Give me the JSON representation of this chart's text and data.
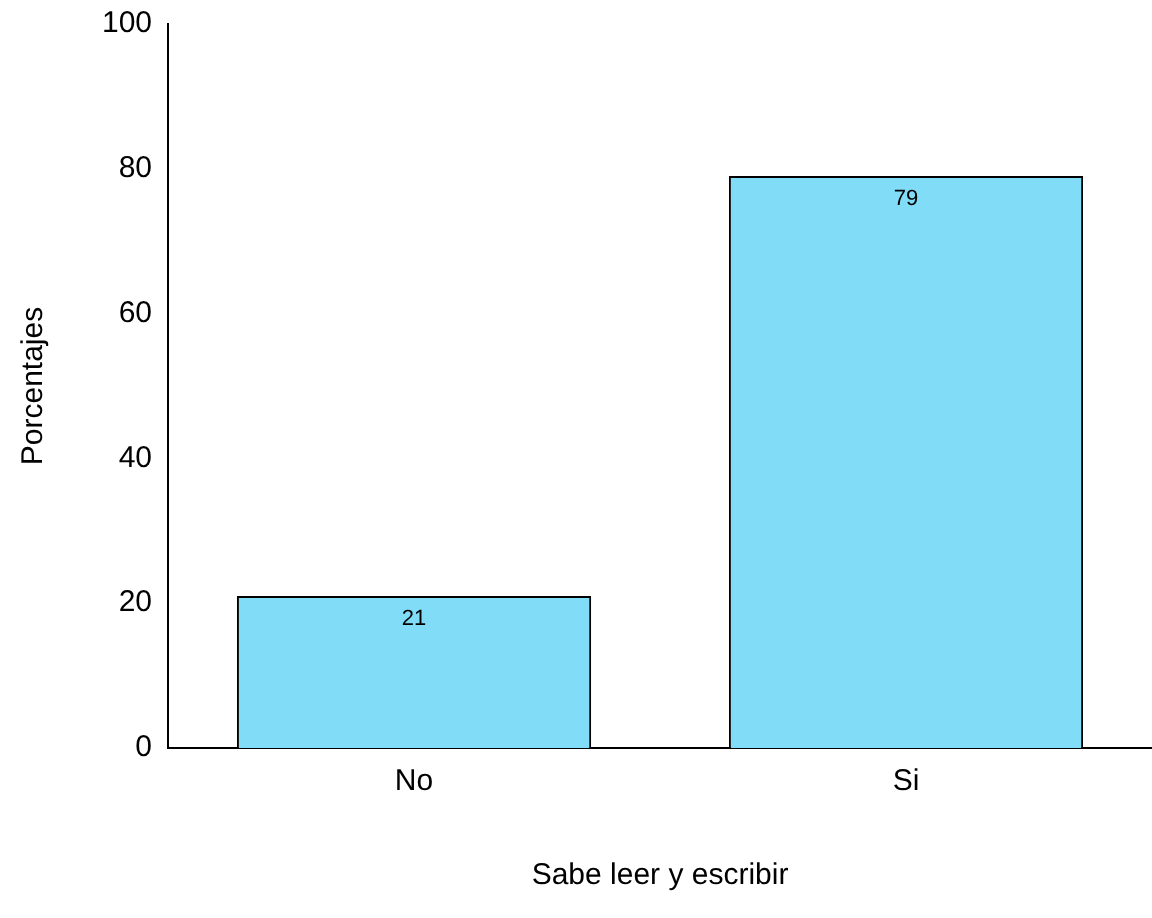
{
  "chart_data": {
    "type": "bar",
    "xlabel": "Sabe leer y escribir",
    "ylabel": "Porcentajes",
    "categories": [
      "No",
      "Si"
    ],
    "values": [
      21,
      79
    ],
    "color": "#80dcf7",
    "ylim": [
      0,
      100
    ],
    "yticks": [
      0,
      20,
      40,
      60,
      80,
      100
    ],
    "grid": false,
    "legend": false,
    "data_labels": true
  }
}
